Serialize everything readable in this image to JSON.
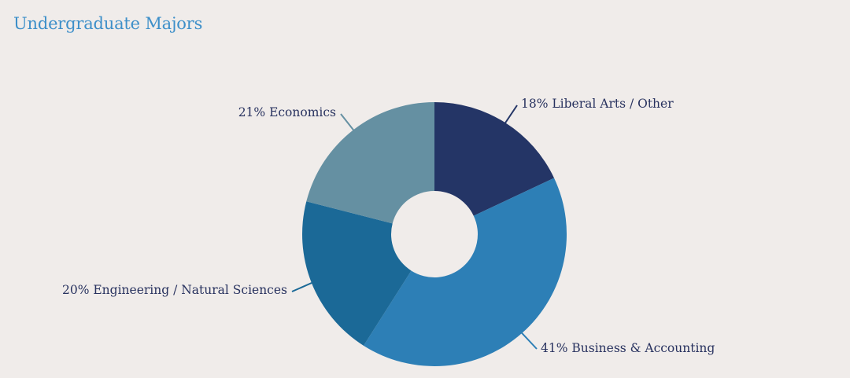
{
  "chart_data": {
    "type": "pie",
    "title": "Undergraduate Majors",
    "donut": true,
    "slices": [
      {
        "label": "Liberal Arts / Other",
        "value": 18,
        "display": "18% Liberal Arts / Other",
        "color": "#243566"
      },
      {
        "label": "Business & Accounting",
        "value": 41,
        "display": "41% Business & Accounting",
        "color": "#2d7fb6"
      },
      {
        "label": "Engineering / Natural Sciences",
        "value": 20,
        "display": "20% Engineering / Natural Sciences",
        "color": "#1b6997"
      },
      {
        "label": "Economics",
        "value": 21,
        "display": "21% Economics",
        "color": "#6590a2"
      }
    ]
  }
}
